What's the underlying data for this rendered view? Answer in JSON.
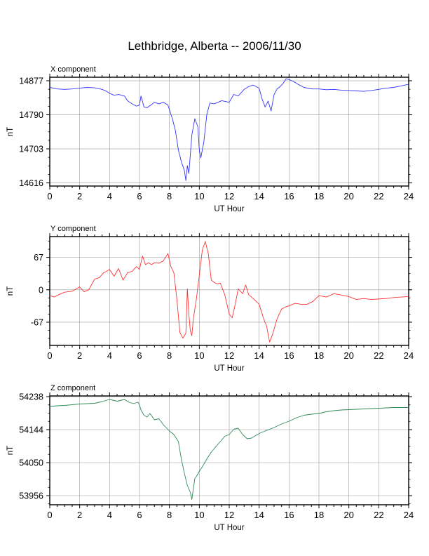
{
  "title": "Lethbridge, Alberta -- 2006/11/30",
  "chart_data": [
    {
      "type": "line",
      "panel_label": "X component",
      "xlabel": "UT Hour",
      "ylabel": "nT",
      "xlim": [
        0,
        24
      ],
      "ylim": [
        14608,
        14886
      ],
      "xticks": [
        0,
        2,
        4,
        6,
        8,
        10,
        12,
        14,
        16,
        18,
        20,
        22,
        24
      ],
      "yticks": [
        14616,
        14703,
        14790,
        14877
      ],
      "grid": true,
      "color": "#3333ff",
      "series": [
        {
          "x": [
            0,
            0.5,
            1,
            1.5,
            2,
            2.5,
            3,
            3.5,
            3.8,
            4,
            4.3,
            4.6,
            5,
            5.2,
            5.5,
            5.8,
            6,
            6.1,
            6.3,
            6.5,
            6.8,
            7,
            7.3,
            7.6,
            7.9,
            8.2,
            8.4,
            8.6,
            8.8,
            9,
            9.1,
            9.2,
            9.3,
            9.5,
            9.7,
            9.9,
            10,
            10.1,
            10.3,
            10.5,
            10.7,
            11,
            11.5,
            12,
            12.3,
            12.6,
            13,
            13.3,
            13.6,
            14,
            14.2,
            14.4,
            14.6,
            14.8,
            15,
            15.2,
            15.4,
            15.6,
            15.8,
            16,
            16.3,
            16.6,
            17,
            17.5,
            18,
            18.5,
            19,
            19.5,
            20,
            20.5,
            21,
            21.5,
            22,
            22.5,
            23,
            23.5,
            24
          ],
          "y": [
            14860,
            14856,
            14855,
            14856,
            14858,
            14860,
            14859,
            14855,
            14850,
            14845,
            14840,
            14842,
            14838,
            14826,
            14818,
            14812,
            14815,
            14838,
            14810,
            14808,
            14816,
            14822,
            14818,
            14822,
            14815,
            14780,
            14750,
            14700,
            14670,
            14648,
            14622,
            14660,
            14640,
            14738,
            14780,
            14760,
            14700,
            14680,
            14720,
            14790,
            14820,
            14818,
            14826,
            14822,
            14842,
            14838,
            14855,
            14862,
            14866,
            14858,
            14830,
            14810,
            14825,
            14800,
            14842,
            14856,
            14862,
            14870,
            14882,
            14880,
            14875,
            14868,
            14860,
            14856,
            14856,
            14854,
            14855,
            14853,
            14852,
            14851,
            14850,
            14852,
            14855,
            14858,
            14860,
            14864,
            14868
          ]
        }
      ]
    },
    {
      "type": "line",
      "panel_label": "Y component",
      "xlabel": "UT Hour",
      "ylabel": "nT",
      "xlim": [
        0,
        24
      ],
      "ylim": [
        -115,
        110
      ],
      "xticks": [
        0,
        2,
        4,
        6,
        8,
        10,
        12,
        14,
        16,
        18,
        20,
        22,
        24
      ],
      "yticks": [
        -67,
        0,
        67
      ],
      "grid": true,
      "color": "#ff3333",
      "series": [
        {
          "x": [
            0,
            0.3,
            0.6,
            1,
            1.5,
            2,
            2.3,
            2.6,
            3,
            3.3,
            3.6,
            4,
            4.3,
            4.6,
            4.9,
            5.2,
            5.5,
            5.8,
            6,
            6.2,
            6.4,
            6.6,
            6.8,
            7,
            7.3,
            7.6,
            7.9,
            8.1,
            8.3,
            8.5,
            8.7,
            8.9,
            9.1,
            9.2,
            9.3,
            9.4,
            9.5,
            9.6,
            9.8,
            10,
            10.2,
            10.4,
            10.6,
            10.8,
            11,
            11.2,
            11.4,
            11.7,
            12,
            12.2,
            12.4,
            12.6,
            12.9,
            13.1,
            13.3,
            13.6,
            14,
            14.3,
            14.5,
            14.7,
            14.9,
            15.2,
            15.5,
            15.8,
            16.1,
            16.4,
            16.8,
            17.2,
            17.6,
            18,
            18.5,
            19,
            19.5,
            20,
            20.5,
            21,
            21.5,
            22,
            22.5,
            23,
            23.5,
            24
          ],
          "y": [
            -12,
            -15,
            -10,
            -5,
            -3,
            6,
            -4,
            0,
            22,
            25,
            35,
            42,
            28,
            44,
            20,
            35,
            38,
            48,
            42,
            70,
            52,
            56,
            52,
            56,
            55,
            60,
            75,
            48,
            35,
            -20,
            -88,
            -100,
            -90,
            2,
            -50,
            -85,
            -95,
            -60,
            -20,
            30,
            82,
            100,
            75,
            20,
            15,
            12,
            14,
            -10,
            -50,
            -58,
            -30,
            2,
            -8,
            10,
            -10,
            -18,
            -30,
            -60,
            -75,
            -108,
            -92,
            -60,
            -40,
            -35,
            -32,
            -28,
            -30,
            -30,
            -24,
            -12,
            -15,
            -8,
            -11,
            -14,
            -20,
            -18,
            -20,
            -19,
            -18,
            -16,
            -15,
            -14
          ]
        }
      ]
    },
    {
      "type": "line",
      "panel_label": "Z component",
      "xlabel": "UT Hour",
      "ylabel": "nT",
      "xlim": [
        0,
        24
      ],
      "ylim": [
        53930,
        54240
      ],
      "xticks": [
        0,
        2,
        4,
        6,
        8,
        10,
        12,
        14,
        16,
        18,
        20,
        22,
        24
      ],
      "yticks": [
        53956,
        54050,
        54144,
        54238
      ],
      "grid": true,
      "color": "#2e8b57",
      "series": [
        {
          "x": [
            0,
            0.5,
            1,
            1.5,
            2,
            2.5,
            3,
            3.5,
            4,
            4.5,
            5,
            5.3,
            5.6,
            5.9,
            6,
            6.1,
            6.3,
            6.5,
            6.7,
            7,
            7.3,
            7.6,
            8,
            8.3,
            8.6,
            8.8,
            9,
            9.2,
            9.4,
            9.5,
            9.6,
            9.7,
            9.8,
            10,
            10.2,
            10.5,
            10.8,
            11.1,
            11.4,
            11.7,
            12,
            12.3,
            12.6,
            12.9,
            13.2,
            13.5,
            13.8,
            14.1,
            14.4,
            14.7,
            15,
            15.5,
            16,
            16.5,
            17,
            17.5,
            18,
            18.5,
            19,
            19.5,
            20,
            20.5,
            21,
            21.5,
            22,
            22.5,
            23,
            23.5,
            24
          ],
          "y": [
            54210,
            54212,
            54213,
            54215,
            54217,
            54218,
            54219,
            54224,
            54230,
            54225,
            54230,
            54222,
            54218,
            54222,
            54214,
            54200,
            54185,
            54180,
            54190,
            54172,
            54175,
            54158,
            54140,
            54130,
            54110,
            54060,
            54020,
            53985,
            53965,
            53945,
            53975,
            54005,
            54010,
            54025,
            54038,
            54060,
            54080,
            54095,
            54110,
            54125,
            54130,
            54145,
            54148,
            54130,
            54118,
            54120,
            54128,
            54135,
            54140,
            54145,
            54150,
            54160,
            54168,
            54178,
            54185,
            54188,
            54190,
            54195,
            54198,
            54200,
            54201,
            54202,
            54203,
            54204,
            54205,
            54206,
            54207,
            54207,
            54207
          ]
        }
      ]
    }
  ]
}
